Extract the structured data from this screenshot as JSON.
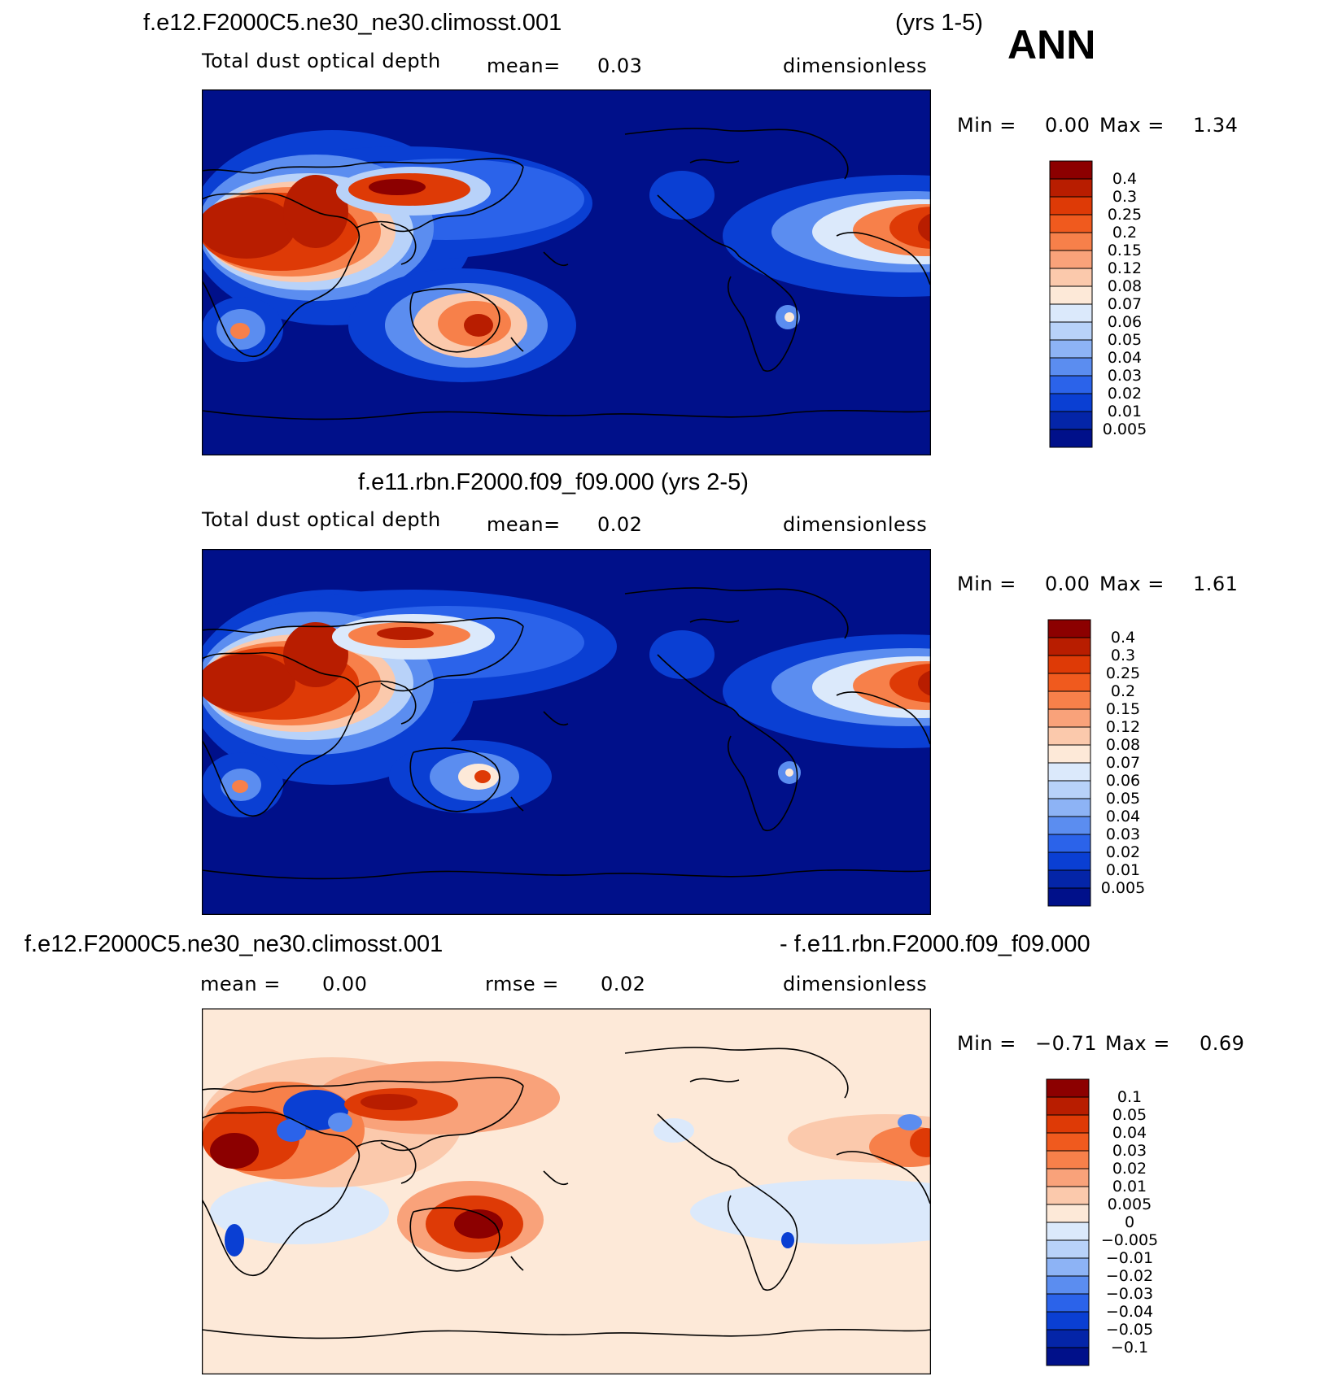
{
  "season": "ANN",
  "chart_data": [
    {
      "type": "heatmap",
      "title": "f.e12.F2000C5.ne30_ne30.climosst.001",
      "years": "(yrs 1-5)",
      "variable": "Total dust optical depth",
      "stat_label": "mean=",
      "stat_value": "0.03",
      "units": "dimensionless",
      "min_label": "Min =",
      "min_value": "0.00",
      "max_label": "Max =",
      "max_value": "1.34",
      "colorbar": {
        "levels": [
          "0.4",
          "0.3",
          "0.25",
          "0.2",
          "0.15",
          "0.12",
          "0.08",
          "0.07",
          "0.06",
          "0.05",
          "0.04",
          "0.03",
          "0.02",
          "0.01",
          "0.005"
        ],
        "colors": [
          "#8c0000",
          "#b81d00",
          "#de3a06",
          "#f05a1e",
          "#f7804a",
          "#f9a27a",
          "#fbc9ac",
          "#fde9d8",
          "#dbe9fb",
          "#b8d2f9",
          "#8db3f5",
          "#5b8df0",
          "#2b63ea",
          "#0a3fd3",
          "#0425a8",
          "#00108a"
        ]
      }
    },
    {
      "type": "heatmap",
      "title": "f.e11.rbn.F2000.f09_f09.000 (yrs 2-5)",
      "variable": "Total dust optical depth",
      "stat_label": "mean=",
      "stat_value": "0.02",
      "units": "dimensionless",
      "min_label": "Min =",
      "min_value": "0.00",
      "max_label": "Max =",
      "max_value": "1.61",
      "colorbar": {
        "levels": [
          "0.4",
          "0.3",
          "0.25",
          "0.2",
          "0.15",
          "0.12",
          "0.08",
          "0.07",
          "0.06",
          "0.05",
          "0.04",
          "0.03",
          "0.02",
          "0.01",
          "0.005"
        ],
        "colors": [
          "#8c0000",
          "#b81d00",
          "#de3a06",
          "#f05a1e",
          "#f7804a",
          "#f9a27a",
          "#fbc9ac",
          "#fde9d8",
          "#dbe9fb",
          "#b8d2f9",
          "#8db3f5",
          "#5b8df0",
          "#2b63ea",
          "#0a3fd3",
          "#0425a8",
          "#00108a"
        ]
      }
    },
    {
      "type": "heatmap",
      "title_left": "f.e12.F2000C5.ne30_ne30.climosst.001",
      "title_right": "- f.e11.rbn.F2000.f09_f09.000",
      "mean_label": "mean =",
      "mean_value": "0.00",
      "rmse_label": "rmse =",
      "rmse_value": "0.02",
      "units": "dimensionless",
      "min_label": "Min =",
      "min_value": "−0.71",
      "max_label": "Max =",
      "max_value": "0.69",
      "colorbar": {
        "levels": [
          "0.1",
          "0.05",
          "0.04",
          "0.03",
          "0.02",
          "0.01",
          "0.005",
          "0",
          "−0.005",
          "−0.01",
          "−0.02",
          "−0.03",
          "−0.04",
          "−0.05",
          "−0.1"
        ],
        "colors": [
          "#8c0000",
          "#b81d00",
          "#de3a06",
          "#f05a1e",
          "#f7804a",
          "#f9a27a",
          "#fbc9ac",
          "#fde9d8",
          "#dbe9fb",
          "#b8d2f9",
          "#8db3f5",
          "#5b8df0",
          "#2b63ea",
          "#0a3fd3",
          "#0425a8",
          "#00108a"
        ]
      }
    }
  ]
}
